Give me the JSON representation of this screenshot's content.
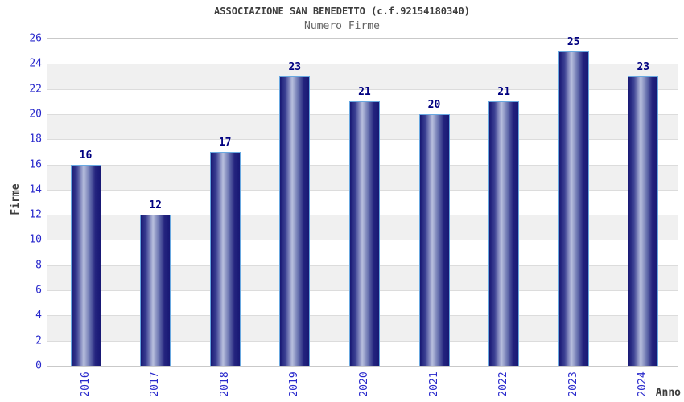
{
  "chart_data": {
    "type": "bar",
    "title": "ASSOCIAZIONE SAN BENEDETTO (c.f.92154180340)",
    "subtitle": "Numero Firme",
    "xlabel": "Anno",
    "ylabel": "Firme",
    "categories": [
      "2016",
      "2017",
      "2018",
      "2019",
      "2020",
      "2021",
      "2022",
      "2023",
      "2024"
    ],
    "values": [
      16,
      12,
      17,
      23,
      21,
      20,
      21,
      25,
      23
    ],
    "ylim": [
      0,
      26
    ],
    "ytick_step": 2,
    "grid": true,
    "legend_position": "none",
    "colors": {
      "tick_label": "#2929cc",
      "value_label": "#000080",
      "title": "#3d3d3d",
      "subtitle": "#646464",
      "axis_title": "#3d3d3d",
      "bar_border": "#69a8e0",
      "bar_dark": "#181874",
      "bar_mid_left": "#3a3f92",
      "bar_light": "#b9c0de",
      "bar_mid_right": "#6a74b0",
      "bar_dark_right": "#23237e",
      "band_light": "#ffffff",
      "band_dark": "#f0f0f0",
      "gridline": "#dcdcdc",
      "plot_border": "#c9c9c9",
      "background": "#ffffff"
    }
  }
}
